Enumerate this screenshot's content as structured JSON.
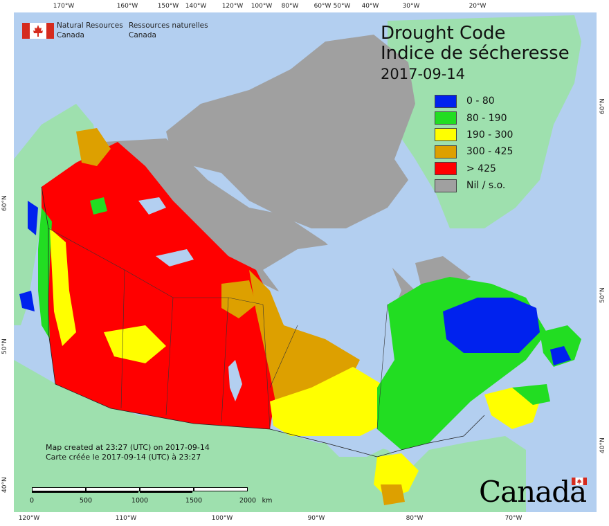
{
  "map": {
    "title_en": "Drought Code",
    "title_fr": "Indice de sécheresse",
    "date": "2017-09-14",
    "legend": [
      {
        "label": "0 - 80",
        "color": "#0022ee"
      },
      {
        "label": "80 - 190",
        "color": "#22dd22"
      },
      {
        "label": "190 - 300",
        "color": "#ffff00"
      },
      {
        "label": "300 - 425",
        "color": "#dda000"
      },
      {
        "label": "> 425",
        "color": "#ff0000"
      },
      {
        "label": "Nil / s.o.",
        "color": "#a0a0a0"
      }
    ],
    "agency_en": [
      "Natural Resources",
      "Canada"
    ],
    "agency_fr": [
      "Ressources naturelles",
      "Canada"
    ],
    "credit_en": "Map created at 23:27 (UTC) on 2017-09-14",
    "credit_fr": "Carte créée le 2017-09-14 (UTC) à 23:27",
    "scale_labels": [
      "0",
      "500",
      "1000",
      "1500",
      "2000",
      "km"
    ],
    "wordmark": "Canada",
    "top_ticks": [
      "170°W",
      "160°W",
      "150°W",
      "140°W",
      "120°W",
      "100°W",
      "80°W",
      "60°W",
      "50°W",
      "40°W",
      "30°W",
      "20°W"
    ],
    "bottom_ticks": [
      "120°W",
      "110°W",
      "100°W",
      "90°W",
      "80°W",
      "70°W"
    ],
    "left_ticks": [
      "60°N",
      "50°N",
      "40°N"
    ],
    "right_ticks": [
      "60°N",
      "50°N",
      "40°N"
    ],
    "colors": {
      "ocean": "#b3cff0",
      "land_other": "#9ee0ae",
      "nil": "#a0a0a0"
    }
  }
}
